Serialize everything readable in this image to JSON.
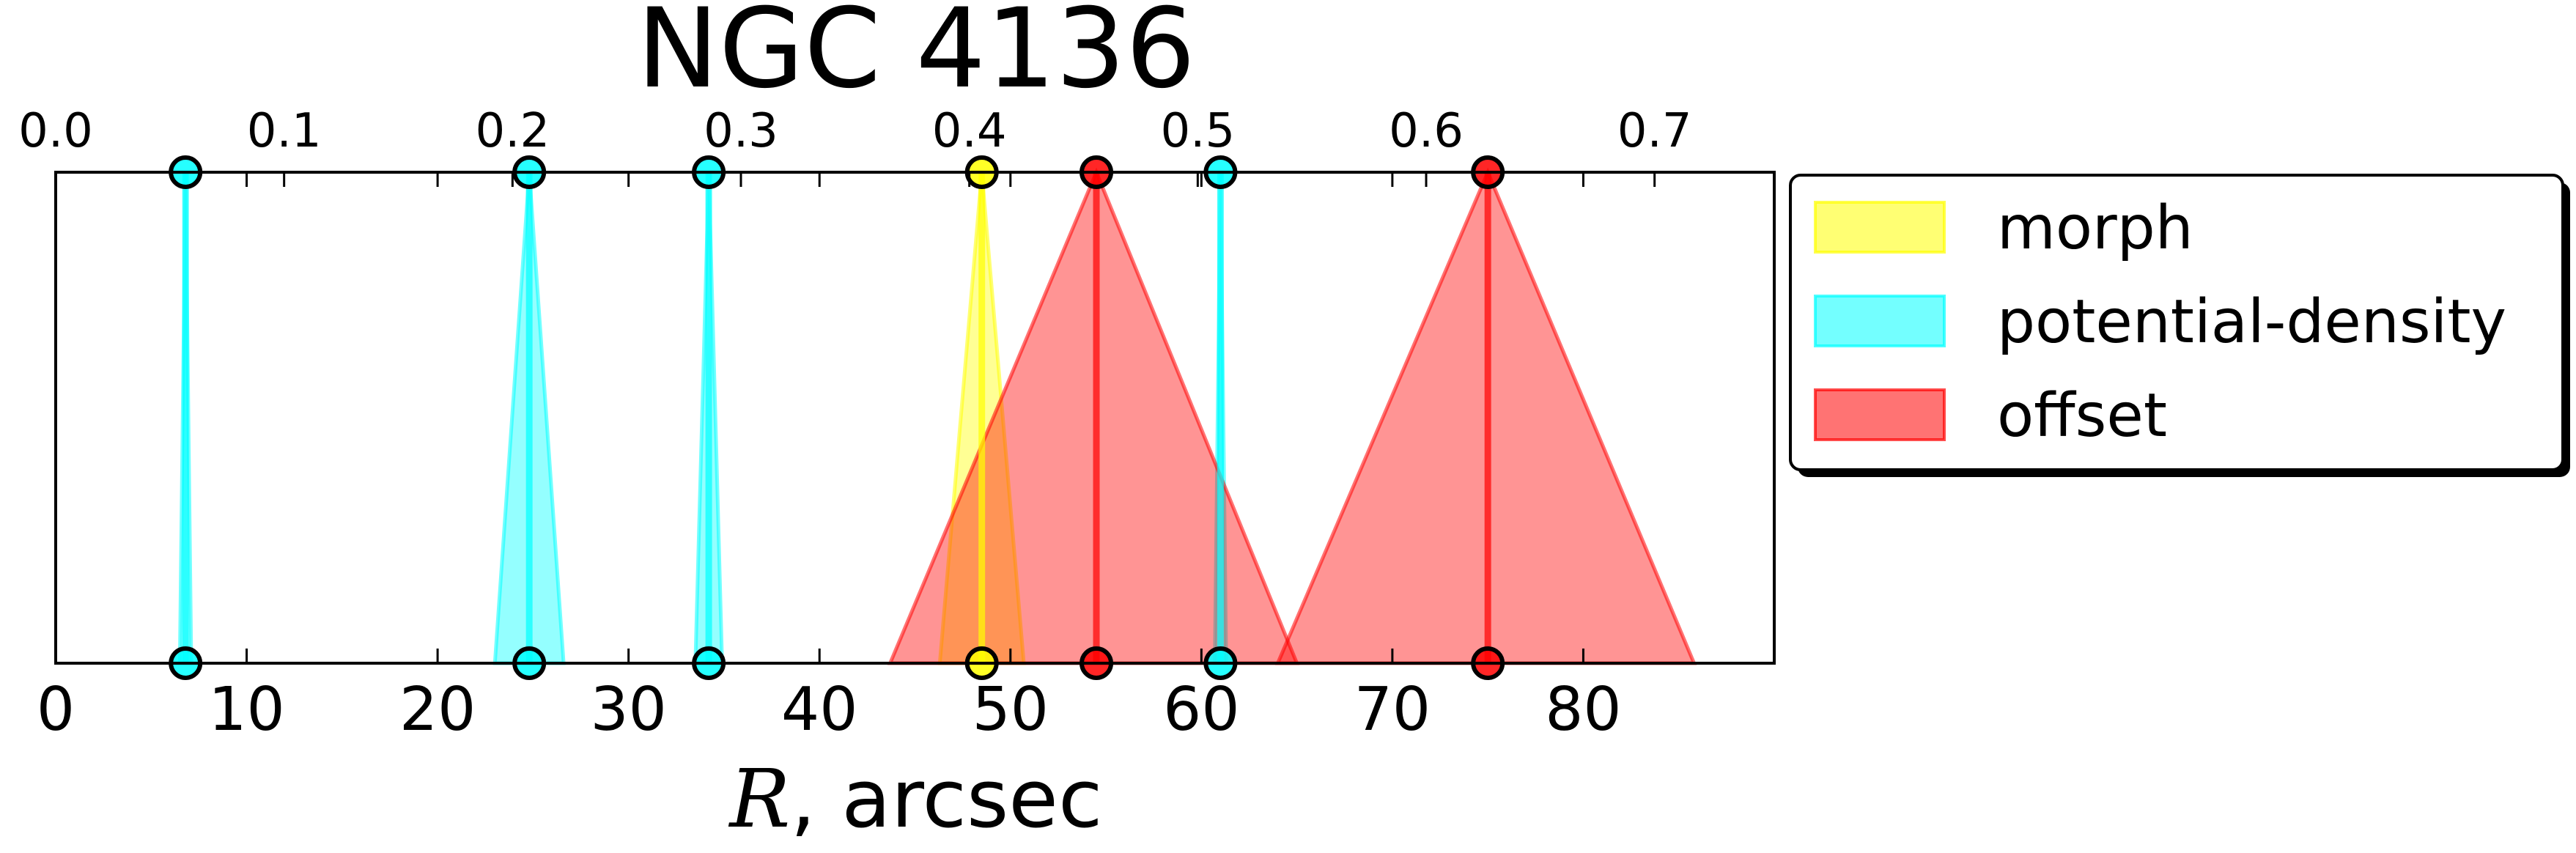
{
  "chart_data": {
    "type": "area",
    "title": "NGC 4136",
    "xlabel_var": "R",
    "xlabel_rest": ", arcsec",
    "xlim": [
      0,
      90
    ],
    "xticks": [
      0,
      10,
      20,
      30,
      40,
      50,
      60,
      70,
      80
    ],
    "top_axis": {
      "scale": 0.00836,
      "ticks": [
        0.0,
        0.1,
        0.2,
        0.3,
        0.4,
        0.5,
        0.6,
        0.7
      ],
      "tick_labels": [
        "0.0",
        "0.1",
        "0.2",
        "0.3",
        "0.4",
        "0.5",
        "0.6",
        "0.7"
      ]
    },
    "legend_position": "right",
    "series": [
      {
        "name": "morph",
        "color": "#ffff00",
        "items": [
          {
            "center": 48.5,
            "left": 46.3,
            "right": 50.7
          }
        ]
      },
      {
        "name": "potential-density",
        "color": "#00ffff",
        "items": [
          {
            "center": 6.8,
            "left": 6.5,
            "right": 7.1
          },
          {
            "center": 24.8,
            "left": 23.0,
            "right": 26.6
          },
          {
            "center": 34.2,
            "left": 33.5,
            "right": 34.9
          },
          {
            "center": 61.0,
            "left": 60.7,
            "right": 61.3
          }
        ]
      },
      {
        "name": "offset",
        "color": "#ff0000",
        "items": [
          {
            "center": 54.5,
            "left": 43.7,
            "right": 65.0
          },
          {
            "center": 75.0,
            "left": 64.0,
            "right": 85.8
          }
        ]
      }
    ]
  }
}
